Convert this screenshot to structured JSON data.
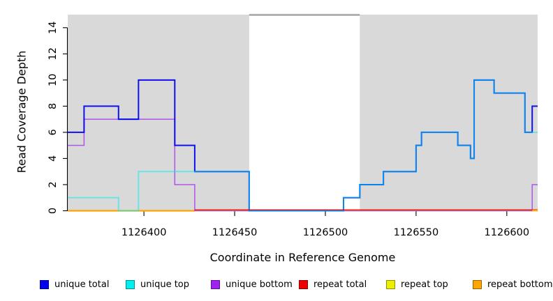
{
  "chart_data": {
    "type": "line",
    "step": true,
    "title": "",
    "xlabel": "Coordinate in Reference Genome",
    "ylabel": "Read Coverage Depth",
    "xlim": [
      1126358,
      1126617
    ],
    "ylim": [
      0,
      15
    ],
    "xticks": [
      1126400,
      1126450,
      1126500,
      1126550,
      1126600
    ],
    "yticks": [
      0,
      2,
      4,
      6,
      8,
      10,
      12,
      14
    ],
    "grid": false,
    "background_shading": {
      "color": "#d9d9d9",
      "regions": [
        [
          1126358,
          1126458
        ],
        [
          1126519,
          1126617
        ]
      ]
    },
    "gap_region": [
      1126458,
      1126519
    ],
    "legend_position": "bottom",
    "series": [
      {
        "name": "unique total",
        "color": "#0000ee",
        "steps": [
          [
            1126358,
            6
          ],
          [
            1126367,
            8
          ],
          [
            1126386,
            7
          ],
          [
            1126397,
            10
          ],
          [
            1126417,
            5
          ],
          [
            1126428,
            3
          ],
          [
            1126458,
            0
          ],
          [
            1126510,
            1
          ],
          [
            1126519,
            2
          ],
          [
            1126532,
            3
          ],
          [
            1126550,
            5
          ],
          [
            1126553,
            6
          ],
          [
            1126573,
            5
          ],
          [
            1126580,
            4
          ],
          [
            1126582,
            10
          ],
          [
            1126593,
            9
          ],
          [
            1126610,
            6
          ],
          [
            1126614,
            8
          ]
        ]
      },
      {
        "name": "unique top",
        "color": "#00eeee",
        "steps": [
          [
            1126358,
            1
          ],
          [
            1126386,
            0
          ],
          [
            1126397,
            3
          ],
          [
            1126458,
            0
          ],
          [
            1126510,
            1
          ],
          [
            1126519,
            2
          ],
          [
            1126532,
            3
          ],
          [
            1126550,
            5
          ],
          [
            1126553,
            6
          ],
          [
            1126573,
            5
          ],
          [
            1126580,
            4
          ],
          [
            1126582,
            10
          ],
          [
            1126593,
            9
          ],
          [
            1126610,
            6
          ]
        ]
      },
      {
        "name": "unique bottom",
        "color": "#a020f0",
        "steps": [
          [
            1126358,
            5
          ],
          [
            1126367,
            7
          ],
          [
            1126417,
            2
          ],
          [
            1126428,
            0
          ],
          [
            1126614,
            2
          ]
        ]
      },
      {
        "name": "repeat total",
        "color": "#ee0000",
        "steps": [
          [
            1126358,
            0
          ]
        ]
      },
      {
        "name": "repeat top",
        "color": "#eeee00",
        "steps": [
          [
            1126358,
            0
          ]
        ]
      },
      {
        "name": "repeat bottom",
        "color": "#ffa500",
        "steps": [
          [
            1126358,
            0
          ]
        ]
      }
    ]
  }
}
